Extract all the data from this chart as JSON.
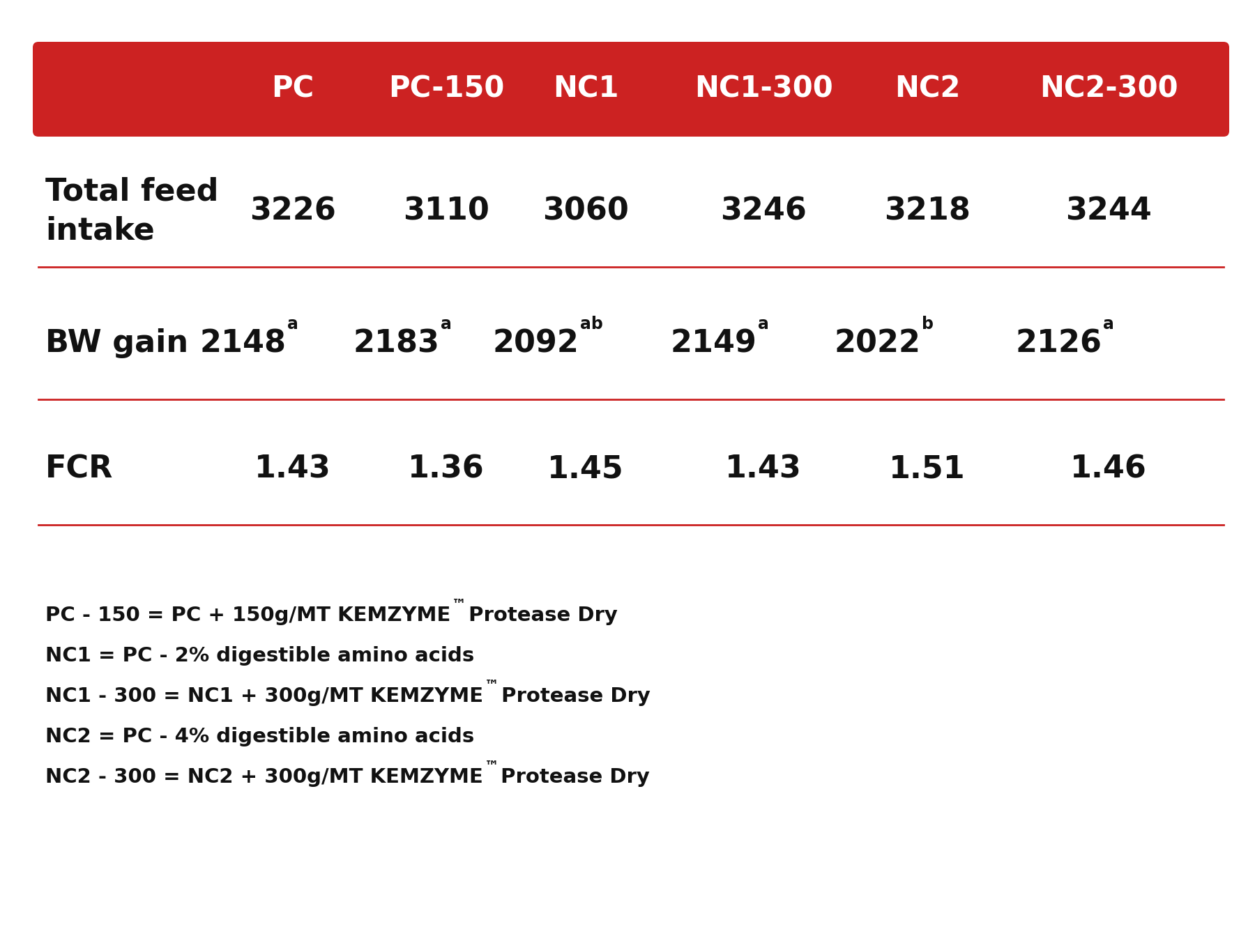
{
  "header_bg_color": "#CC2222",
  "header_text_color": "#FFFFFF",
  "header_labels": [
    "PC",
    "PC-150",
    "NC1",
    "NC1-300",
    "NC2",
    "NC2-300"
  ],
  "row_label_color": "#111111",
  "data_color": "#111111",
  "divider_color": "#CC2222",
  "bg_color": "#FFFFFF",
  "rows": [
    {
      "label": "Total feed\nintake",
      "values": [
        "3226",
        "3110",
        "3060",
        "3246",
        "3218",
        "3244"
      ],
      "superscripts": [
        "",
        "",
        "",
        "",
        "",
        ""
      ]
    },
    {
      "label": "BW gain",
      "values": [
        "2148",
        "2183",
        "2092",
        "2149",
        "2022",
        "2126"
      ],
      "superscripts": [
        "a",
        "a",
        "ab",
        "a",
        "b",
        "a"
      ]
    },
    {
      "label": "FCR",
      "values": [
        "1.43",
        "1.36",
        "1.45",
        "1.43",
        "1.51",
        "1.46"
      ],
      "superscripts": [
        "",
        "",
        "",
        "",
        "",
        ""
      ]
    }
  ],
  "footnotes": [
    [
      "PC - 150 = PC + 150g/MT KEMZYME",
      "™",
      " Protease Dry"
    ],
    [
      "NC1 = PC - 2% digestible amino acids",
      "",
      ""
    ],
    [
      "NC1 - 300 = NC1 + 300g/MT KEMZYME",
      "™",
      " Protease Dry"
    ],
    [
      "NC2 = PC - 4% digestible amino acids",
      "",
      ""
    ],
    [
      "NC2 - 300 = NC2 + 300g/MT KEMZYME",
      "™",
      " Protease Dry"
    ]
  ],
  "header_fontsize": 30,
  "data_fontsize": 32,
  "label_fontsize": 32,
  "footnote_fontsize": 21,
  "superscript_fontsize": 17
}
